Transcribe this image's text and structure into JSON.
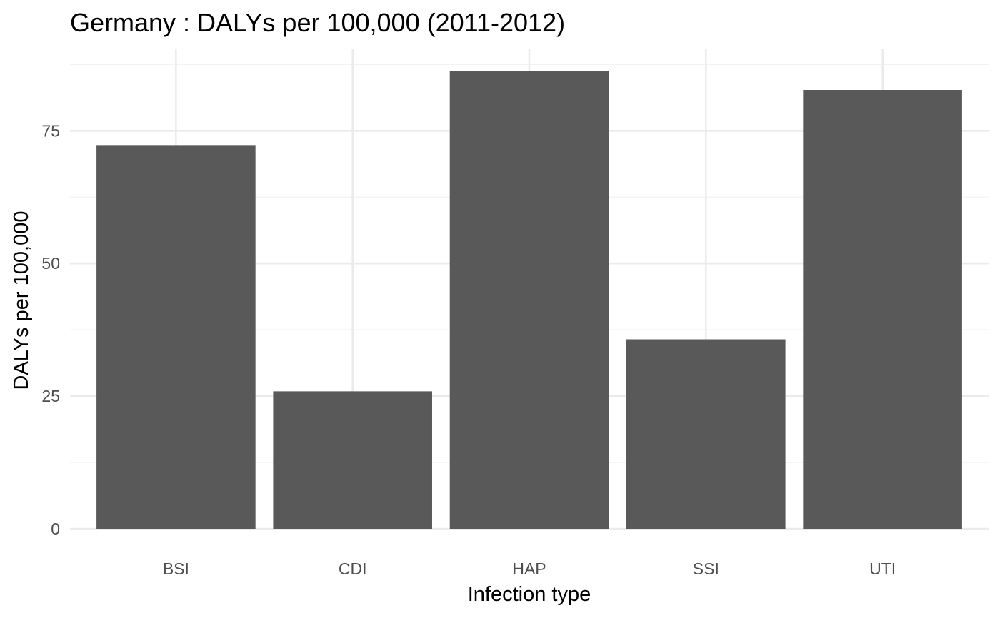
{
  "chart_data": {
    "type": "bar",
    "title": "Germany : DALYs per 100,000 (2011-2012)",
    "xlabel": "Infection type",
    "ylabel": "DALYs per 100,000",
    "categories": [
      "BSI",
      "CDI",
      "HAP",
      "SSI",
      "UTI"
    ],
    "values": [
      72.3,
      25.9,
      86.2,
      35.7,
      82.7
    ],
    "ylim": [
      0,
      90.5
    ],
    "yticks": [
      0,
      25,
      50,
      75
    ],
    "ytick_labels": [
      "0",
      "25",
      "50",
      "75"
    ],
    "grid": true,
    "legend": "none",
    "bar_color": "#595959",
    "background": "#ffffff"
  }
}
